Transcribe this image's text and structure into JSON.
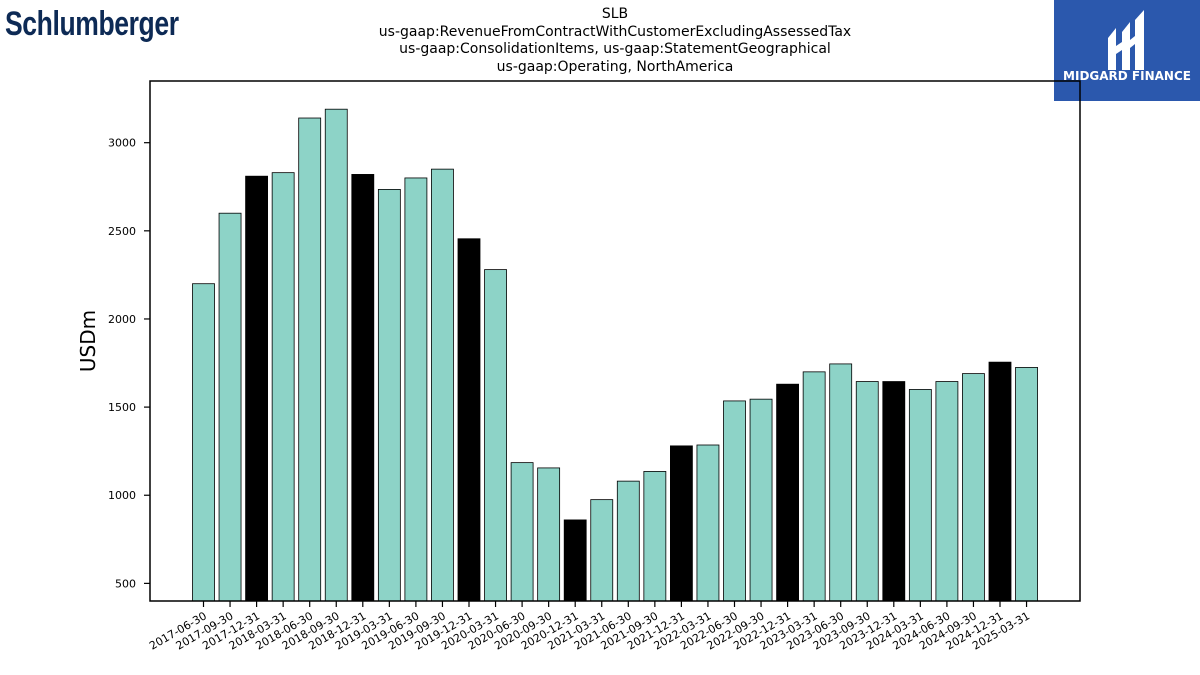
{
  "header": {
    "company_logo_text": "Schlumberger",
    "title_lines": [
      "SLB",
      "us-gaap:RevenueFromContractWithCustomerExcludingAssessedTax",
      "us-gaap:ConsolidationItems, us-gaap:StatementGeographical",
      "us-gaap:Operating, NorthAmerica"
    ]
  },
  "brand": {
    "name": "MIDGARD FINANCE",
    "background": "#2b58ad",
    "icon": "midgard-logo-icon"
  },
  "colors": {
    "bar_default": "#8dd3c7",
    "bar_highlight": "#000000",
    "edge": "#000000"
  },
  "chart_data": {
    "type": "bar",
    "title": "SLB us-gaap:RevenueFromContractWithCustomerExcludingAssessedTax us-gaap:ConsolidationItems, us-gaap:StatementGeographical us-gaap:Operating, NorthAmerica",
    "xlabel": "",
    "ylabel": "USDm",
    "ylim": [
      400,
      3350
    ],
    "yticks": [
      500,
      1000,
      1500,
      2000,
      2500,
      3000
    ],
    "grid": false,
    "categories": [
      "2017-06-30",
      "2017-09-30",
      "2017-12-31",
      "2018-03-31",
      "2018-06-30",
      "2018-09-30",
      "2018-12-31",
      "2019-03-31",
      "2019-06-30",
      "2019-09-30",
      "2019-12-31",
      "2020-03-31",
      "2020-06-30",
      "2020-09-30",
      "2020-12-31",
      "2021-03-31",
      "2021-06-30",
      "2021-09-30",
      "2021-12-31",
      "2022-03-31",
      "2022-06-30",
      "2022-09-30",
      "2022-12-31",
      "2023-03-31",
      "2023-06-30",
      "2023-09-30",
      "2023-12-31",
      "2024-03-31",
      "2024-06-30",
      "2024-09-30",
      "2024-12-31",
      "2025-03-31"
    ],
    "values": [
      2200,
      2600,
      2810,
      2830,
      3140,
      3190,
      2820,
      2735,
      2800,
      2850,
      2455,
      2280,
      1185,
      1155,
      860,
      975,
      1080,
      1135,
      1280,
      1285,
      1535,
      1545,
      1630,
      1700,
      1745,
      1645,
      1645,
      1600,
      1645,
      1690,
      1755,
      1725
    ],
    "highlight": [
      false,
      false,
      true,
      false,
      false,
      false,
      true,
      false,
      false,
      false,
      true,
      false,
      false,
      false,
      true,
      false,
      false,
      false,
      true,
      false,
      false,
      false,
      true,
      false,
      false,
      false,
      true,
      false,
      false,
      false,
      true,
      false
    ]
  }
}
